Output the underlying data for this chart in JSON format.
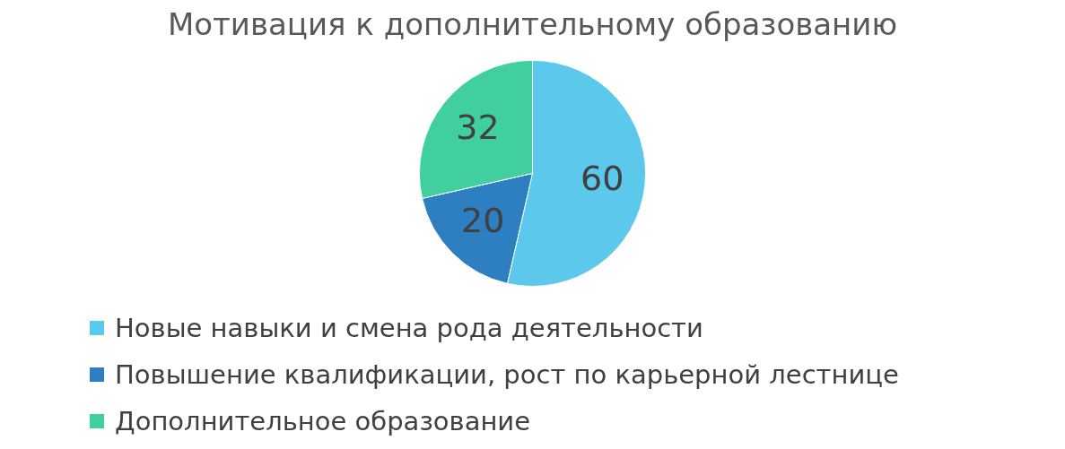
{
  "chart_data": {
    "type": "pie",
    "title": "Мотивация к дополнительному образованию",
    "categories": [
      "Новые навыки и смена рода деятельности",
      "Повышение квалификации, рост по карьерной лестнице",
      "Дополнительное образование"
    ],
    "values": [
      60,
      20,
      32
    ],
    "colors": [
      "#5bc8ec",
      "#2e7fc1",
      "#41cfa0"
    ],
    "data_labels": true,
    "legend": "bottom"
  }
}
